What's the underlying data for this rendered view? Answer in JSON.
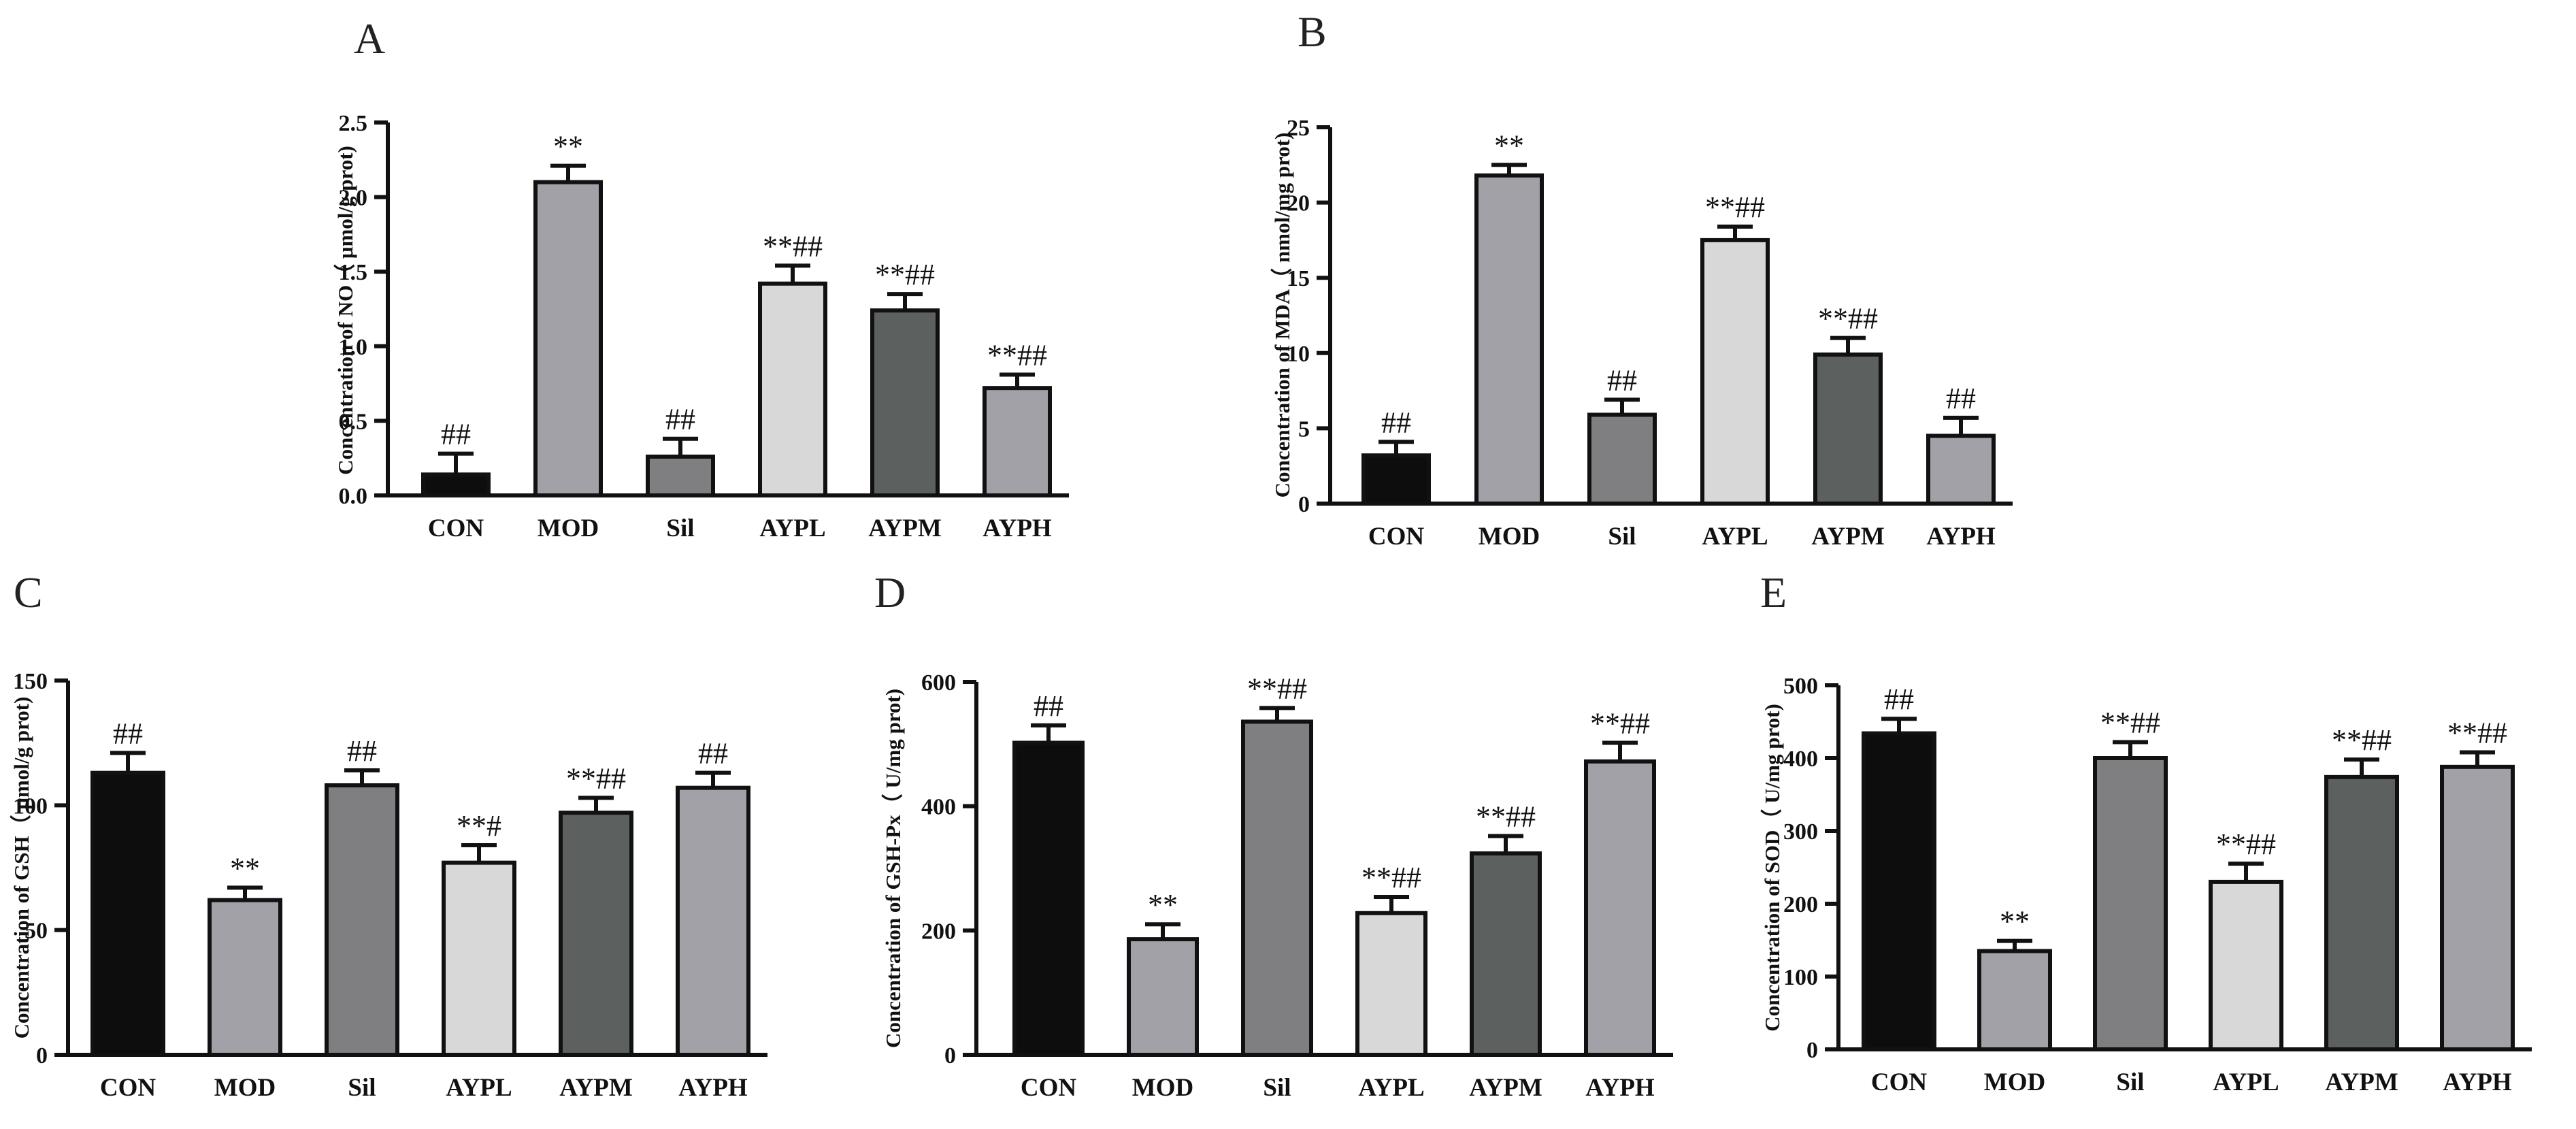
{
  "colors": {
    "CON": "#0d0d0d",
    "MOD": "#a1a1a7",
    "Sil": "#7f7f82",
    "AYPL": "#d8d8d8",
    "AYPM": "#5c605f",
    "AYPH": "#a1a1a7",
    "axis": "#111111"
  },
  "chart_data": [
    {
      "panel": "A",
      "type": "bar",
      "categories": [
        "CON",
        "MOD",
        "Sil",
        "AYPL",
        "AYPM",
        "AYPH"
      ],
      "values": [
        0.14,
        2.1,
        0.26,
        1.42,
        1.24,
        0.72
      ],
      "errors": [
        0.14,
        0.11,
        0.12,
        0.12,
        0.11,
        0.09
      ],
      "significance": [
        "##",
        "**",
        "##",
        "**##",
        "**##",
        "**##"
      ],
      "ylabel": "Concentration of NO（ μmol/g prot)",
      "ylim": [
        0,
        2.5
      ],
      "yticks": [
        "0.0",
        "0.5",
        "1.0",
        "1.5",
        "2.0",
        "2.5"
      ]
    },
    {
      "panel": "B",
      "type": "bar",
      "categories": [
        "CON",
        "MOD",
        "Sil",
        "AYPL",
        "AYPM",
        "AYPH"
      ],
      "values": [
        3.2,
        21.8,
        5.9,
        17.5,
        9.9,
        4.5
      ],
      "errors": [
        0.9,
        0.7,
        1.0,
        0.9,
        1.1,
        1.2
      ],
      "significance": [
        "##",
        "**",
        "##",
        "**##",
        "**##",
        "##"
      ],
      "ylabel": "Concentration of MDA（ nmol/mg prot)",
      "ylim": [
        0,
        25
      ],
      "yticks": [
        "0",
        "5",
        "10",
        "15",
        "20",
        "25"
      ]
    },
    {
      "panel": "C",
      "type": "bar",
      "categories": [
        "CON",
        "MOD",
        "Sil",
        "AYPL",
        "AYPM",
        "AYPH"
      ],
      "values": [
        113,
        62,
        108,
        77,
        97,
        107
      ],
      "errors": [
        8,
        5,
        6,
        7,
        6,
        6
      ],
      "significance": [
        "##",
        "**",
        "##",
        "**#",
        "**##",
        "##"
      ],
      "ylabel": "Concentration of GSH（ μmol/g prot)",
      "ylim": [
        0,
        150
      ],
      "yticks": [
        "0",
        "50",
        "100",
        "150"
      ]
    },
    {
      "panel": "D",
      "type": "bar",
      "categories": [
        "CON",
        "MOD",
        "Sil",
        "AYPL",
        "AYPM",
        "AYPH"
      ],
      "values": [
        502,
        186,
        536,
        228,
        324,
        472
      ],
      "errors": [
        28,
        24,
        22,
        26,
        28,
        30
      ],
      "significance": [
        "##",
        "**",
        "**##",
        "**##",
        "**##",
        "**##"
      ],
      "ylabel": "Concentration of GSH-Px（ U/mg prot)",
      "ylim": [
        0,
        600
      ],
      "yticks": [
        "0",
        "200",
        "400",
        "600"
      ]
    },
    {
      "panel": "E",
      "type": "bar",
      "categories": [
        "CON",
        "MOD",
        "Sil",
        "AYPL",
        "AYPM",
        "AYPH"
      ],
      "values": [
        434,
        135,
        400,
        230,
        374,
        388
      ],
      "errors": [
        20,
        14,
        22,
        25,
        24,
        20
      ],
      "significance": [
        "##",
        "**",
        "**##",
        "**##",
        "**##",
        "**##"
      ],
      "ylabel": "Concentration of SOD（ U/mg prot)",
      "ylim": [
        0,
        500
      ],
      "yticks": [
        "0",
        "100",
        "200",
        "300",
        "400",
        "500"
      ]
    }
  ]
}
